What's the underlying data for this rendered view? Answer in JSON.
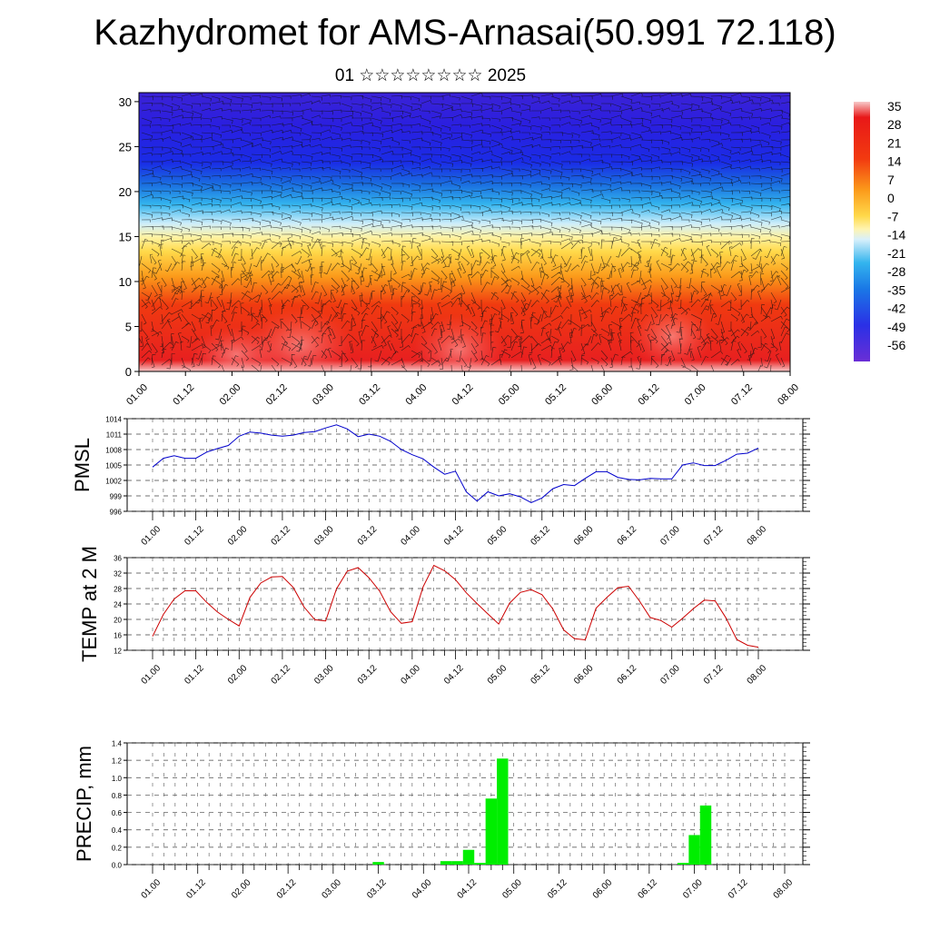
{
  "title": "Kazhydromet for AMS-Arnasai(50.991 72.118)",
  "subtitle": "01 ☆☆☆☆☆☆☆☆ 2025",
  "time_ticks": [
    "01.00",
    "01.12",
    "02.00",
    "02.12",
    "03.00",
    "03.12",
    "04.00",
    "04.12",
    "05.00",
    "05.12",
    "06.00",
    "06.12",
    "07.00",
    "07.12",
    "08.00"
  ],
  "colorbar": {
    "labels": [
      "35",
      "28",
      "21",
      "14",
      "7",
      "0",
      "-7",
      "-14",
      "-21",
      "-28",
      "-35",
      "-42",
      "-49",
      "-56"
    ]
  },
  "chart_data": [
    {
      "type": "heatmap",
      "name": "temperature-cross-section",
      "xlabel": "",
      "ylabel": "",
      "ylim": [
        0,
        31
      ],
      "yticks": [
        0,
        5,
        10,
        15,
        20,
        25,
        30
      ],
      "xticks": [
        "01.00",
        "01.12",
        "02.00",
        "02.12",
        "03.00",
        "03.12",
        "04.00",
        "04.12",
        "05.00",
        "05.12",
        "06.00",
        "06.12",
        "07.00",
        "07.12",
        "08.00"
      ],
      "color_range": [
        -56,
        35
      ],
      "wind_barbs": true
    },
    {
      "type": "line",
      "ylabel": "PMSL",
      "ylim": [
        996,
        1014
      ],
      "yticks": [
        996,
        999,
        1002,
        1005,
        1008,
        1011,
        1014
      ],
      "xticks": [
        "01.00",
        "01.12",
        "02.00",
        "02.12",
        "03.00",
        "03.12",
        "04.00",
        "04.12",
        "05.00",
        "05.12",
        "06.00",
        "06.12",
        "07.00",
        "07.12",
        "08.00"
      ],
      "color": "#0000cc",
      "x": [
        0,
        3,
        6,
        9,
        12,
        15,
        18,
        21,
        24,
        27,
        30,
        33,
        36,
        39,
        42,
        45,
        48,
        51,
        54,
        57,
        60,
        63,
        66,
        69,
        72,
        75,
        78,
        81,
        84,
        87,
        90,
        93,
        96,
        99,
        102,
        105,
        108,
        111,
        114,
        117,
        120,
        123,
        126,
        129,
        132,
        135,
        138,
        141,
        144,
        147,
        150,
        153,
        156,
        159,
        162,
        165,
        168
      ],
      "values": [
        1004.6,
        1006.3,
        1006.8,
        1006.3,
        1006.3,
        1007.5,
        1008.2,
        1008.8,
        1010.6,
        1011.4,
        1011.2,
        1010.8,
        1010.6,
        1010.8,
        1011.3,
        1011.5,
        1012.2,
        1012.8,
        1012.0,
        1010.5,
        1011.0,
        1010.6,
        1009.6,
        1008.0,
        1007.0,
        1006.2,
        1004.6,
        1003.2,
        1003.8,
        999.8,
        998.0,
        999.8,
        999.0,
        999.4,
        998.8,
        997.7,
        998.6,
        1000.4,
        1001.2,
        1001.0,
        1002.4,
        1003.7,
        1003.7,
        1002.6,
        1002.2,
        1002.1,
        1002.4,
        1002.3,
        1002.3,
        1005.0,
        1005.4,
        1004.9,
        1004.9,
        1005.9,
        1007.1,
        1007.3,
        1008.3
      ]
    },
    {
      "type": "line",
      "ylabel": "TEMP at 2 M",
      "ylim": [
        12,
        36
      ],
      "yticks": [
        12,
        16,
        20,
        24,
        28,
        32,
        36
      ],
      "xticks": [
        "01.00",
        "01.12",
        "02.00",
        "02.12",
        "03.00",
        "03.12",
        "04.00",
        "04.12",
        "05.00",
        "05.12",
        "06.00",
        "06.12",
        "07.00",
        "07.12",
        "08.00"
      ],
      "color": "#cc0000",
      "x": [
        0,
        3,
        6,
        9,
        12,
        15,
        18,
        21,
        24,
        27,
        30,
        33,
        36,
        39,
        42,
        45,
        48,
        51,
        54,
        57,
        60,
        63,
        66,
        69,
        72,
        75,
        78,
        81,
        84,
        87,
        90,
        93,
        96,
        99,
        102,
        105,
        108,
        111,
        114,
        117,
        120,
        123,
        126,
        129,
        132,
        135,
        138,
        141,
        144,
        147,
        150,
        153,
        156,
        159,
        162,
        165,
        168
      ],
      "values": [
        15.6,
        21.3,
        25.3,
        27.4,
        27.4,
        24.4,
        21.9,
        20.0,
        18.3,
        25.7,
        29.4,
        31.0,
        31.1,
        28.3,
        23.2,
        19.9,
        19.6,
        27.9,
        32.5,
        33.4,
        30.8,
        27.3,
        22.0,
        19.0,
        19.4,
        28.4,
        34.0,
        32.6,
        30.3,
        26.9,
        24.1,
        21.4,
        18.8,
        24.2,
        27.0,
        27.7,
        26.4,
        22.7,
        17.3,
        15.0,
        14.7,
        22.9,
        25.7,
        28.2,
        28.6,
        24.8,
        20.5,
        19.7,
        18.0,
        20.3,
        22.8,
        25.0,
        24.8,
        20.4,
        14.8,
        13.3,
        12.8
      ]
    },
    {
      "type": "bar",
      "ylabel": "PRECIP, mm",
      "ylim": [
        0,
        1.4
      ],
      "yticks": [
        0.0,
        0.2,
        0.4,
        0.6,
        0.8,
        1.0,
        1.2,
        1.4
      ],
      "xticks": [
        "01.00",
        "01.12",
        "02.00",
        "02.12",
        "03.00",
        "03.12",
        "04.00",
        "04.12",
        "05.00",
        "05.12",
        "06.00",
        "06.12",
        "07.00",
        "07.12",
        "08.00"
      ],
      "color": "#00ee00",
      "x": [
        60,
        78,
        81,
        84,
        87,
        90,
        93,
        141,
        144,
        147
      ],
      "values": [
        0.03,
        0.04,
        0.04,
        0.17,
        0.02,
        0.76,
        1.22,
        0.02,
        0.34,
        0.68
      ]
    }
  ]
}
